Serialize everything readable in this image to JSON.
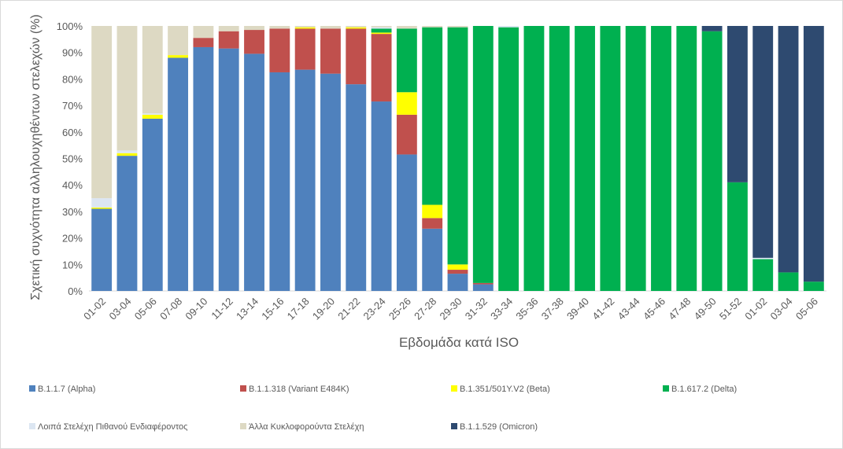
{
  "chart_data": {
    "type": "stacked_bar",
    "x_label": "Εβδομάδα κατά ISO",
    "y_label": "Σχετική συχνότητα αλληλουχηθέντων στελεχών (%)",
    "categories": [
      "01-02",
      "03-04",
      "05-06",
      "07-08",
      "09-10",
      "11-12",
      "13-14",
      "15-16",
      "17-18",
      "19-20",
      "21-22",
      "23-24",
      "25-26",
      "27-28",
      "29-30",
      "31-32",
      "33-34",
      "35-36",
      "37-38",
      "39-40",
      "41-42",
      "43-44",
      "45-46",
      "47-48",
      "49-50",
      "51-52",
      "01-02",
      "03-04",
      "05-06"
    ],
    "ylim": [
      0,
      100
    ],
    "yticks": [
      {
        "value": 0,
        "label": "0%"
      },
      {
        "value": 10,
        "label": "10%"
      },
      {
        "value": 20,
        "label": "20%"
      },
      {
        "value": 30,
        "label": "30%"
      },
      {
        "value": 40,
        "label": "40%"
      },
      {
        "value": 50,
        "label": "50%"
      },
      {
        "value": 60,
        "label": "60%"
      },
      {
        "value": 70,
        "label": "70%"
      },
      {
        "value": 80,
        "label": "80%"
      },
      {
        "value": 90,
        "label": "90%"
      },
      {
        "value": 100,
        "label": "100%"
      }
    ],
    "legend_position": "bottom",
    "series": [
      {
        "name": "B.1.1.7 (Alpha)",
        "color": "#4f81bd",
        "values": [
          31,
          51,
          65,
          88,
          92,
          91.5,
          89.5,
          82.5,
          83.5,
          82,
          78,
          71.5,
          51.5,
          23.5,
          6.5,
          2.5,
          0,
          0,
          0,
          0,
          0,
          0,
          0,
          0,
          0,
          0,
          0,
          0,
          0
        ]
      },
      {
        "name": "B.1.1.318 (Variant E484K)",
        "color": "#c0504d",
        "values": [
          0,
          0,
          0,
          0,
          3.5,
          6.5,
          9,
          16.5,
          15.5,
          17,
          21,
          25.5,
          15,
          4,
          1.5,
          0.5,
          0,
          0,
          0,
          0,
          0,
          0,
          0,
          0,
          0,
          0,
          0,
          0,
          0
        ]
      },
      {
        "name": "B.1.351/501Y.V2 (Beta)",
        "color": "#ffff00",
        "values": [
          0.5,
          1,
          1.5,
          1,
          0,
          0,
          0,
          0,
          0.5,
          0,
          0.5,
          0.5,
          8.5,
          5,
          2,
          0,
          0,
          0,
          0,
          0,
          0,
          0,
          0,
          0,
          0,
          0,
          0,
          0,
          0
        ]
      },
      {
        "name": "B.1.617.2 (Delta)",
        "color": "#00b050",
        "values": [
          0,
          0,
          0,
          0,
          0,
          0,
          0,
          0,
          0,
          0,
          0,
          1.5,
          24,
          67,
          89.5,
          97,
          99.5,
          100,
          100,
          100,
          100,
          100,
          100,
          100,
          98,
          41,
          12,
          7,
          3.5
        ]
      },
      {
        "name": "Λοιπά Στελέχη Πιθανού Ενδιαφέροντος",
        "color": "#dce6f2",
        "values": [
          3.5,
          1,
          0.5,
          0,
          0,
          0,
          0,
          0,
          0,
          0,
          0,
          0.5,
          0,
          0,
          0,
          0,
          0.5,
          0,
          0,
          0,
          0,
          0,
          0,
          0,
          0,
          0,
          0.5,
          0,
          0
        ]
      },
      {
        "name": "Άλλα Κυκλοφορούντα Στελέχη",
        "color": "#ddd9c3",
        "values": [
          65,
          47,
          33,
          11,
          4.5,
          2,
          1.5,
          1,
          0.5,
          1,
          0.5,
          0.5,
          1,
          0.5,
          0.5,
          0,
          0,
          0,
          0,
          0,
          0,
          0,
          0,
          0,
          0,
          0,
          0,
          0,
          0
        ]
      },
      {
        "name": "B.1.1.529 (Omicron)",
        "color": "#2e4a70",
        "values": [
          0,
          0,
          0,
          0,
          0,
          0,
          0,
          0,
          0,
          0,
          0,
          0,
          0,
          0,
          0,
          0,
          0,
          0,
          0,
          0,
          0,
          0,
          0,
          0,
          2,
          59,
          87.5,
          93,
          96.5
        ]
      }
    ]
  }
}
